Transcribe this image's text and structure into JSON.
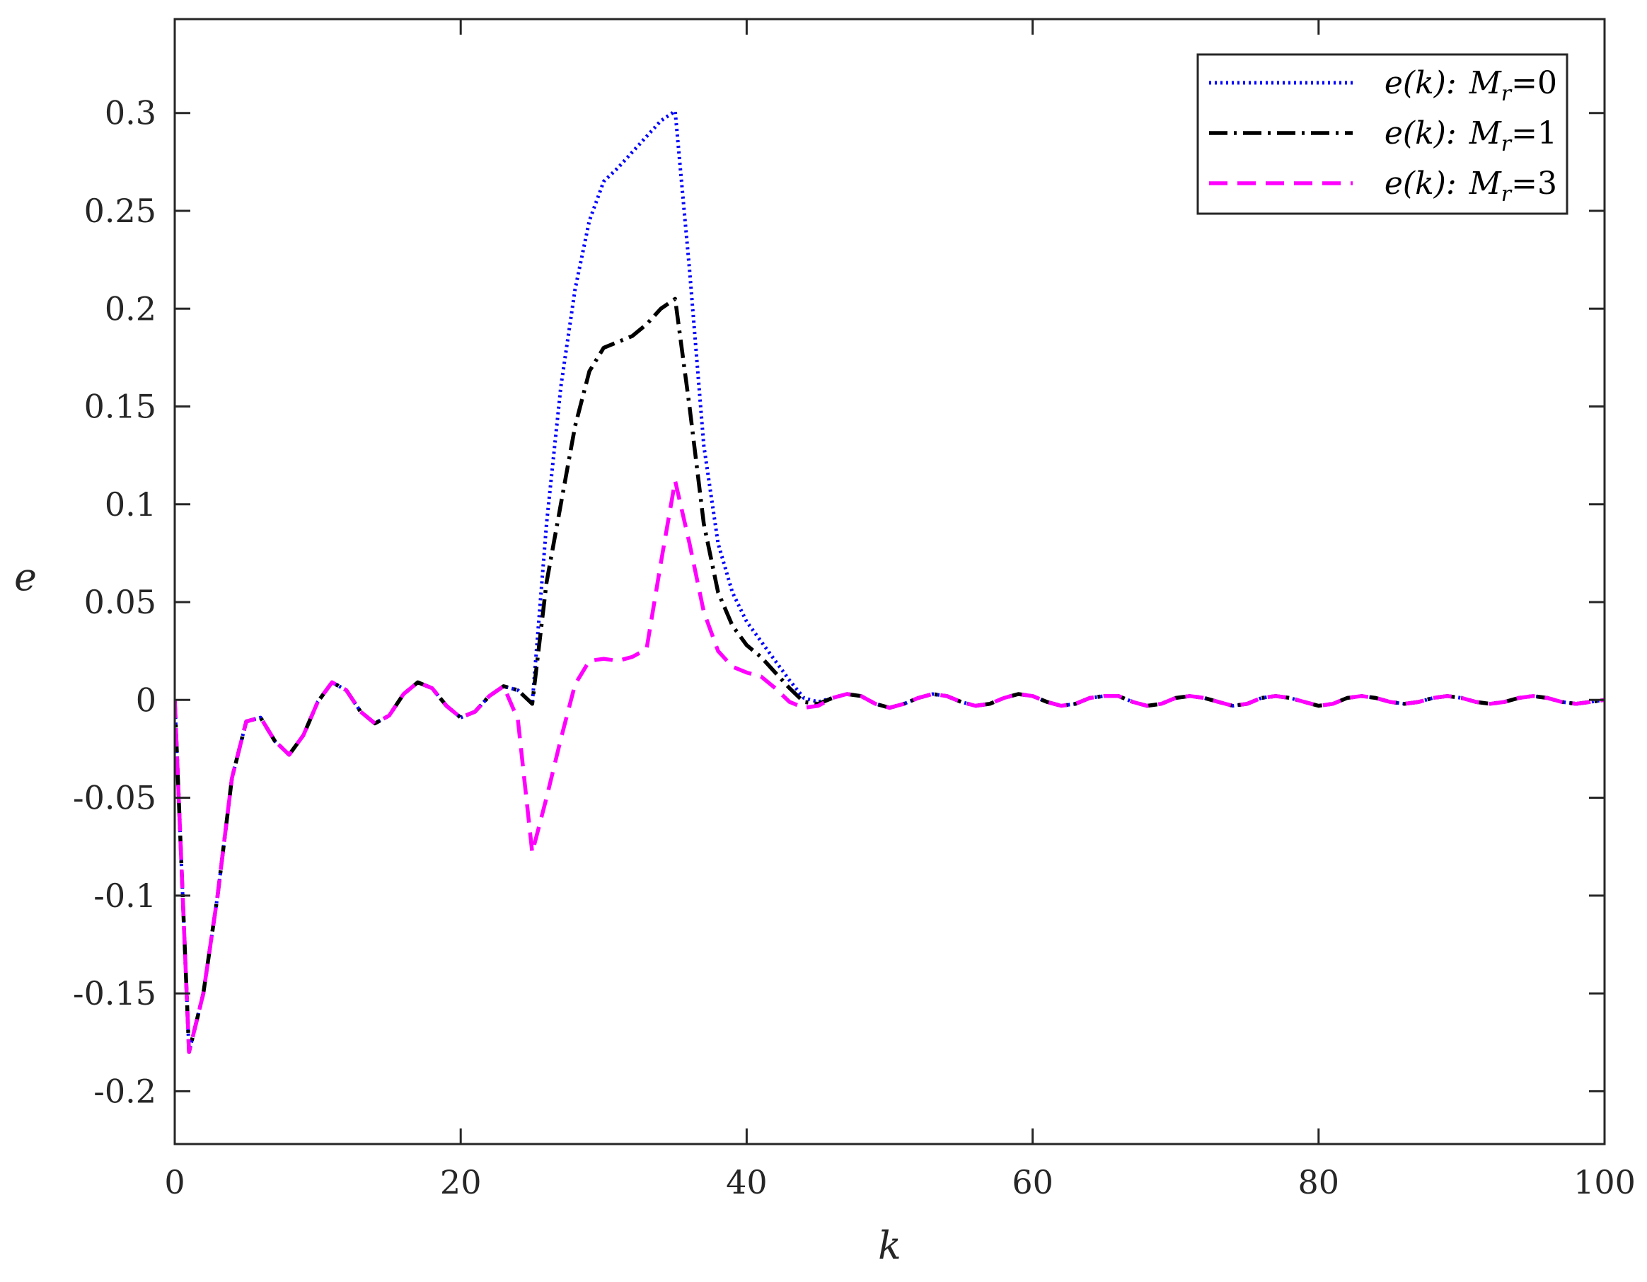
{
  "chart_data": {
    "type": "line",
    "xlabel": "k",
    "ylabel": "e",
    "xlim": [
      0,
      100
    ],
    "ylim": [
      -0.227,
      0.348
    ],
    "xticks": [
      0,
      20,
      40,
      60,
      80,
      100
    ],
    "xtick_labels": [
      "0",
      "20",
      "40",
      "60",
      "80",
      "100"
    ],
    "yticks": [
      -0.2,
      -0.15,
      -0.1,
      -0.05,
      0,
      0.05,
      0.1,
      0.15,
      0.2,
      0.25,
      0.3
    ],
    "ytick_labels": [
      "-0.2",
      "-0.15",
      "-0.1",
      "-0.05",
      "0",
      "0.05",
      "0.1",
      "0.15",
      "0.2",
      "0.25",
      "0.3"
    ],
    "grid": false,
    "legend_position": "top-right",
    "x": [
      0,
      1,
      2,
      3,
      4,
      5,
      6,
      7,
      8,
      9,
      10,
      11,
      12,
      13,
      14,
      15,
      16,
      17,
      18,
      19,
      20,
      21,
      22,
      23,
      24,
      25,
      26,
      27,
      28,
      29,
      30,
      31,
      32,
      33,
      34,
      35,
      36,
      37,
      38,
      39,
      40,
      41,
      42,
      43,
      44,
      45,
      46,
      47,
      48,
      49,
      50,
      51,
      52,
      53,
      54,
      55,
      56,
      57,
      58,
      59,
      60,
      61,
      62,
      63,
      64,
      65,
      66,
      67,
      68,
      69,
      70,
      71,
      72,
      73,
      74,
      75,
      76,
      77,
      78,
      79,
      80,
      81,
      82,
      83,
      84,
      85,
      86,
      87,
      88,
      89,
      90,
      91,
      92,
      93,
      94,
      95,
      96,
      97,
      98,
      99,
      100
    ],
    "series": [
      {
        "name": "e(k): M_r=0",
        "color": "#0000ff",
        "dash": "dotted",
        "values": [
          0,
          -0.18,
          -0.15,
          -0.1,
          -0.04,
          -0.011,
          -0.009,
          -0.021,
          -0.028,
          -0.018,
          -0.001,
          0.009,
          0.005,
          -0.006,
          -0.012,
          -0.008,
          0.003,
          0.009,
          0.006,
          -0.003,
          -0.009,
          -0.006,
          0.002,
          0.007,
          0.005,
          -0.002,
          0.09,
          0.16,
          0.21,
          0.245,
          0.265,
          0.272,
          0.28,
          0.288,
          0.296,
          0.301,
          0.22,
          0.13,
          0.08,
          0.055,
          0.04,
          0.03,
          0.02,
          0.01,
          0.001,
          -0.001,
          0.001,
          0.003,
          0.002,
          -0.002,
          -0.004,
          -0.002,
          0.001,
          0.003,
          0.002,
          -0.001,
          -0.003,
          -0.002,
          0.001,
          0.003,
          0.002,
          -0.001,
          -0.003,
          -0.002,
          0.001,
          0.002,
          0.002,
          -0.001,
          -0.003,
          -0.002,
          0.001,
          0.002,
          0.001,
          -0.001,
          -0.003,
          -0.002,
          0.001,
          0.002,
          0.001,
          -0.001,
          -0.003,
          -0.002,
          0.001,
          0.002,
          0.001,
          -0.001,
          -0.002,
          -0.001,
          0.001,
          0.002,
          0.001,
          -0.001,
          -0.002,
          -0.001,
          0.001,
          0.002,
          0.001,
          -0.001,
          -0.002,
          -0.001,
          0
        ]
      },
      {
        "name": "e(k): M_r=1",
        "color": "#000000",
        "dash": "dashdot",
        "values": [
          0,
          -0.18,
          -0.15,
          -0.1,
          -0.04,
          -0.011,
          -0.009,
          -0.021,
          -0.028,
          -0.018,
          -0.001,
          0.009,
          0.005,
          -0.006,
          -0.012,
          -0.008,
          0.003,
          0.009,
          0.006,
          -0.003,
          -0.009,
          -0.006,
          0.002,
          0.007,
          0.005,
          -0.002,
          0.06,
          0.1,
          0.14,
          0.168,
          0.18,
          0.183,
          0.186,
          0.192,
          0.2,
          0.205,
          0.15,
          0.09,
          0.055,
          0.038,
          0.028,
          0.022,
          0.014,
          0.006,
          -0.001,
          -0.002,
          0.001,
          0.003,
          0.002,
          -0.002,
          -0.004,
          -0.002,
          0.001,
          0.003,
          0.002,
          -0.001,
          -0.003,
          -0.002,
          0.001,
          0.003,
          0.002,
          -0.001,
          -0.003,
          -0.002,
          0.001,
          0.002,
          0.002,
          -0.001,
          -0.003,
          -0.002,
          0.001,
          0.002,
          0.001,
          -0.001,
          -0.003,
          -0.002,
          0.001,
          0.002,
          0.001,
          -0.001,
          -0.003,
          -0.002,
          0.001,
          0.002,
          0.001,
          -0.001,
          -0.002,
          -0.001,
          0.001,
          0.002,
          0.001,
          -0.001,
          -0.002,
          -0.001,
          0.001,
          0.002,
          0.001,
          -0.001,
          -0.002,
          -0.001,
          0
        ]
      },
      {
        "name": "e(k): M_r=3",
        "color": "#ff00ff",
        "dash": "dashed",
        "values": [
          0,
          -0.18,
          -0.15,
          -0.1,
          -0.04,
          -0.011,
          -0.009,
          -0.021,
          -0.028,
          -0.018,
          -0.001,
          0.009,
          0.005,
          -0.006,
          -0.012,
          -0.008,
          0.003,
          0.009,
          0.006,
          -0.003,
          -0.009,
          -0.006,
          0.002,
          0.007,
          -0.01,
          -0.078,
          -0.05,
          -0.02,
          0.008,
          0.02,
          0.021,
          0.02,
          0.022,
          0.026,
          0.07,
          0.112,
          0.08,
          0.045,
          0.025,
          0.017,
          0.014,
          0.012,
          0.006,
          -0.001,
          -0.004,
          -0.003,
          0.001,
          0.003,
          0.002,
          -0.002,
          -0.004,
          -0.002,
          0.001,
          0.003,
          0.002,
          -0.001,
          -0.003,
          -0.002,
          0.001,
          0.003,
          0.002,
          -0.001,
          -0.003,
          -0.002,
          0.001,
          0.002,
          0.002,
          -0.001,
          -0.003,
          -0.002,
          0.001,
          0.002,
          0.001,
          -0.001,
          -0.003,
          -0.002,
          0.001,
          0.002,
          0.001,
          -0.001,
          -0.003,
          -0.002,
          0.001,
          0.002,
          0.001,
          -0.001,
          -0.002,
          -0.001,
          0.001,
          0.002,
          0.001,
          -0.001,
          -0.002,
          -0.001,
          0.001,
          0.002,
          0.001,
          -0.001,
          -0.002,
          -0.001,
          0
        ]
      }
    ]
  },
  "legend": {
    "entries": [
      {
        "prefix": "e(k):",
        "var": "M",
        "sub": "r",
        "value": "=0"
      },
      {
        "prefix": "e(k):",
        "var": "M",
        "sub": "r",
        "value": "=1"
      },
      {
        "prefix": "e(k):",
        "var": "M",
        "sub": "r",
        "value": "=3"
      }
    ]
  }
}
